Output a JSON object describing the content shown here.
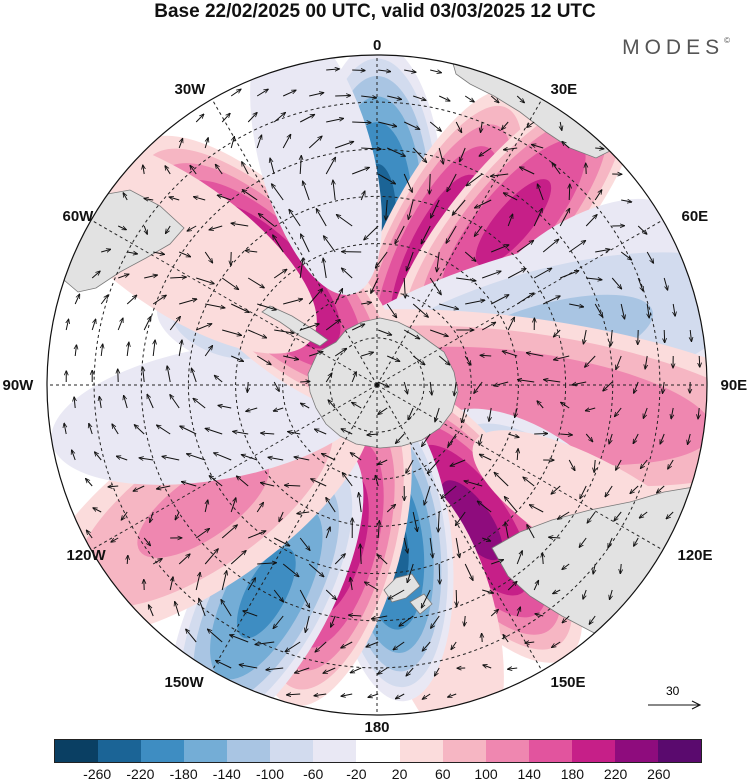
{
  "title": "Base 22/02/2025 00 UTC, valid 03/03/2025 12 UTC",
  "brand": "MODES",
  "brand_mark": "©",
  "lon_labels": [
    "0",
    "30E",
    "60E",
    "90E",
    "120E",
    "150E",
    "180",
    "150W",
    "120W",
    "90W",
    "60W",
    "30W"
  ],
  "reference_vector": {
    "value": "30"
  },
  "colorbar": {
    "ticks": [
      "-260",
      "-220",
      "-180",
      "-140",
      "-100",
      "-60",
      "-20",
      "20",
      "60",
      "100",
      "140",
      "180",
      "220",
      "260"
    ],
    "colors": [
      "#0a3f63",
      "#1b6496",
      "#3e8dc2",
      "#74add6",
      "#a9c5e3",
      "#d2dbee",
      "#e9e8f4",
      "#ffffff",
      "#fbdcdc",
      "#f6b6c3",
      "#ef87b0",
      "#e2549e",
      "#c61f88",
      "#8e0c7d",
      "#5a0a6e"
    ]
  },
  "anomalies": [
    {
      "lon": 0,
      "lat": -53,
      "amp": -240,
      "rl": 2.5,
      "rr": 11
    },
    {
      "lon": 25,
      "lat": -60,
      "amp": 230,
      "rl": 3,
      "rr": 10
    },
    {
      "lon": 40,
      "lat": -45,
      "amp": 200,
      "rl": 3,
      "rr": 10
    },
    {
      "lon": 60,
      "lat": -40,
      "amp": -40,
      "rl": 2.2,
      "rr": 14
    },
    {
      "lon": 75,
      "lat": -52,
      "amp": -120,
      "rl": 3,
      "rr": 16
    },
    {
      "lon": 98,
      "lat": -58,
      "amp": 150,
      "rl": 3.5,
      "rr": 15
    },
    {
      "lon": 120,
      "lat": -53,
      "amp": -120,
      "rl": 2.2,
      "rr": 8
    },
    {
      "lon": 145,
      "lat": -55,
      "amp": 240,
      "rl": 2.5,
      "rr": 11
    },
    {
      "lon": 165,
      "lat": -40,
      "amp": 60,
      "rl": 2.5,
      "rr": 12
    },
    {
      "lon": 175,
      "lat": -55,
      "amp": -240,
      "rl": 2.5,
      "rr": 10
    },
    {
      "lon": -165,
      "lat": -55,
      "amp": 220,
      "rl": 2.5,
      "rr": 11
    },
    {
      "lon": -152,
      "lat": -40,
      "amp": -200,
      "rl": 2.5,
      "rr": 11
    },
    {
      "lon": -125,
      "lat": -45,
      "amp": 120,
      "rl": 2.5,
      "rr": 14
    },
    {
      "lon": -100,
      "lat": -55,
      "amp": -60,
      "rl": 2.5,
      "rr": 14
    },
    {
      "lon": -70,
      "lat": -55,
      "amp": -120,
      "rl": 2,
      "rr": 6
    },
    {
      "lon": -45,
      "lat": -57,
      "amp": 240,
      "rl": 2.5,
      "rr": 12
    },
    {
      "lon": -55,
      "lat": -38,
      "amp": 60,
      "rl": 2.5,
      "rr": 14
    },
    {
      "lon": -15,
      "lat": -40,
      "amp": -60,
      "rl": 2.5,
      "rr": 12
    },
    {
      "lon": 120,
      "lat": -35,
      "amp": 40,
      "rl": 3,
      "rr": 14
    }
  ]
}
